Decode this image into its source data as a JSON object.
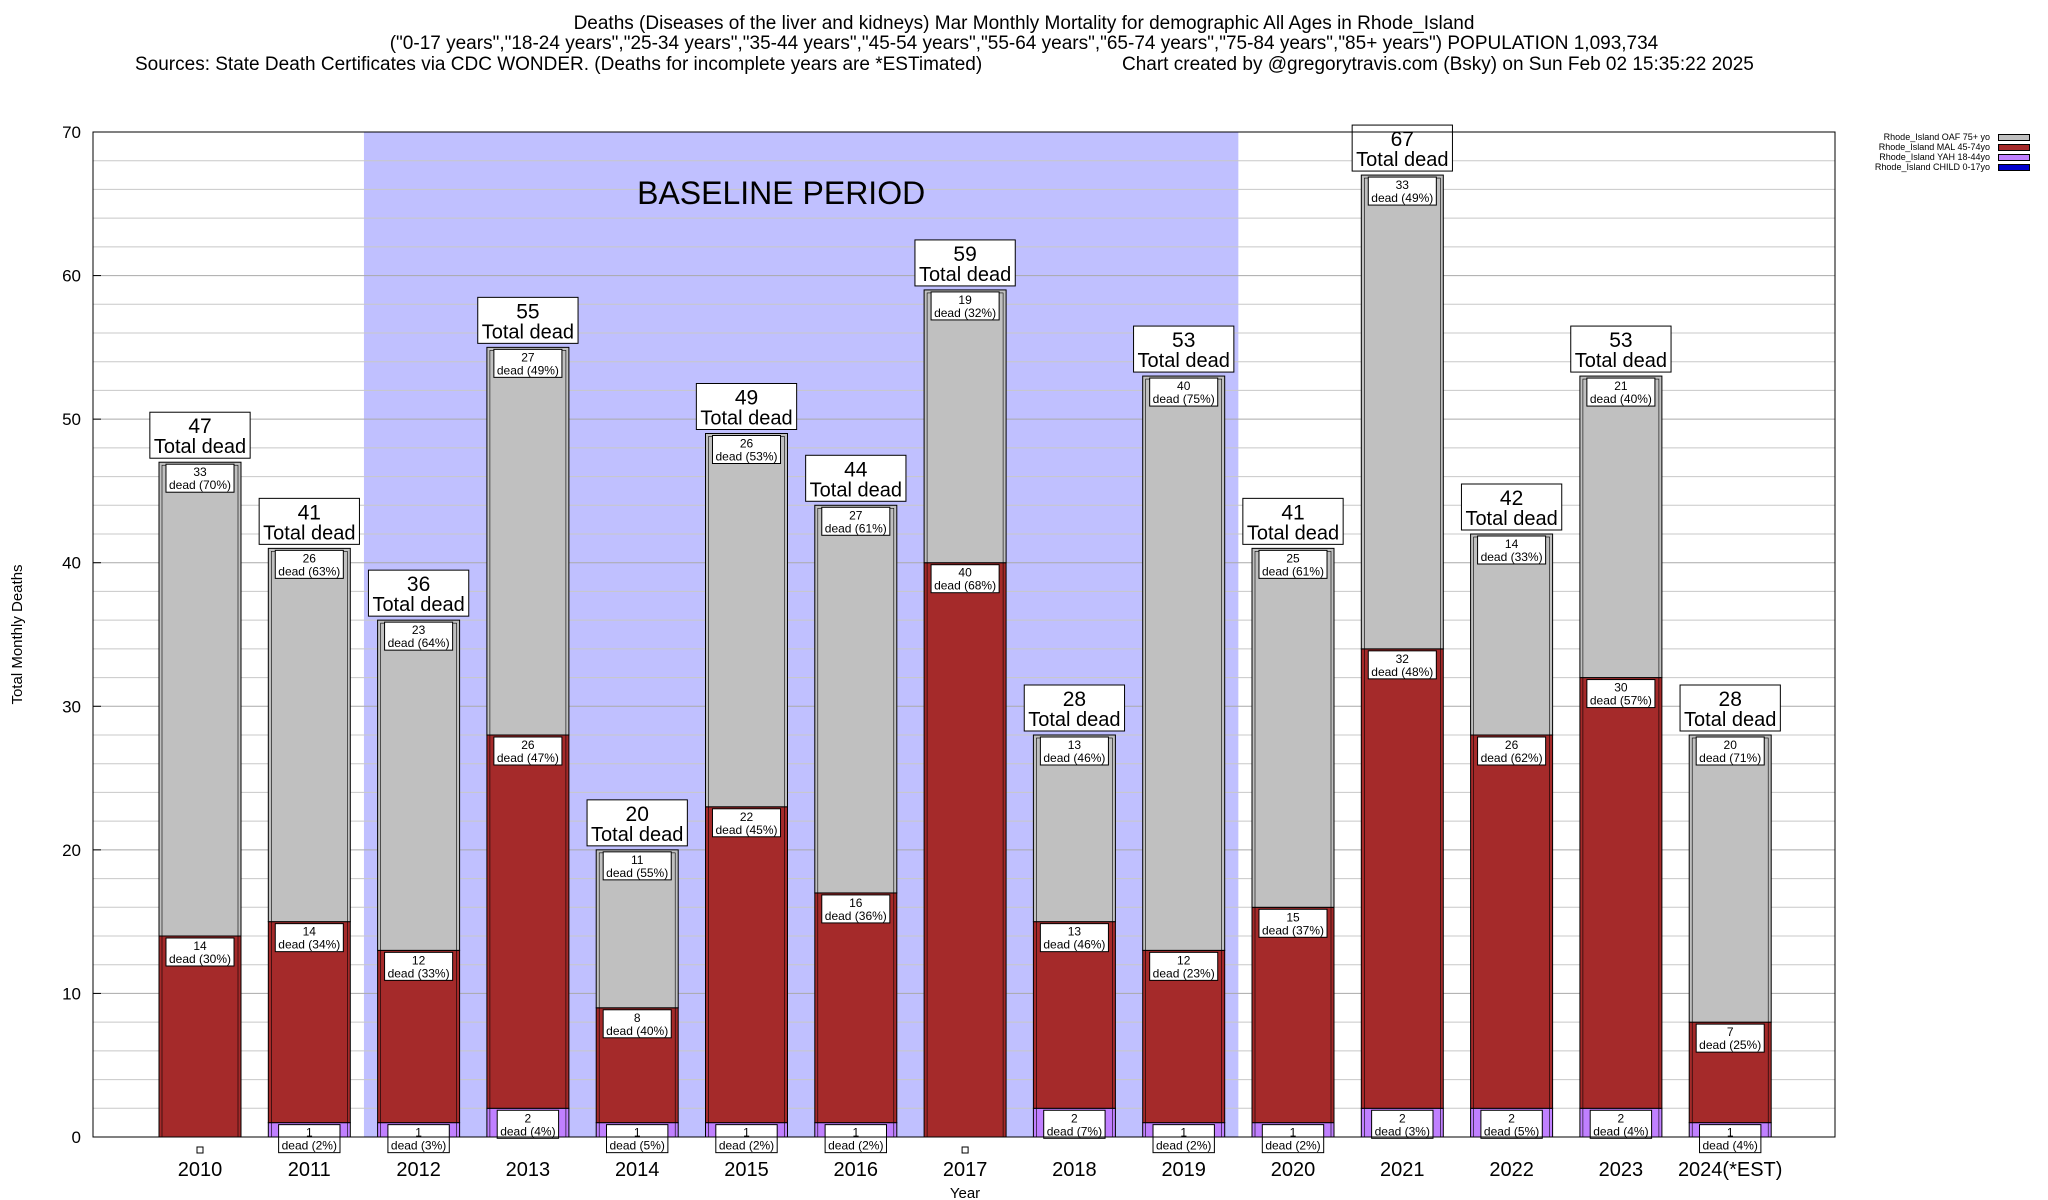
{
  "header": {
    "title_line1": "Deaths (Diseases of the liver and kidneys) Mar Monthly Mortality for demographic All Ages in Rhode_Island",
    "title_line2": "(\"0-17 years\",\"18-24 years\",\"25-34 years\",\"35-44 years\",\"45-54 years\",\"55-64 years\",\"65-74 years\",\"75-84 years\",\"85+ years\") POPULATION 1,093,734",
    "sources": "Sources: State Death Certificates via CDC WONDER. (Deaths for incomplete years are *ESTimated)",
    "credit": "Chart created by @gregorytravis.com (Bsky) on Sun Feb 02 15:35:22 2025"
  },
  "legend": [
    {
      "label": "Rhode_Island OAF 75+ yo",
      "color": "#c0c0c0"
    },
    {
      "label": "Rhode_Island MAL 45-74yo",
      "color": "#a52a2a"
    },
    {
      "label": "Rhode_Island YAH 18-44yo",
      "color": "#c080ff"
    },
    {
      "label": "Rhode_Island CHILD 0-17yo",
      "color": "#0000cd"
    }
  ],
  "chart_data": {
    "type": "bar",
    "stacked": true,
    "xlabel": "Year",
    "ylabel": "Total Monthly Deaths",
    "ylim": [
      0,
      70
    ],
    "yticks": [
      0,
      10,
      20,
      30,
      40,
      50,
      60,
      70
    ],
    "grid": true,
    "legend_position": "top-right",
    "baseline": {
      "label": "BASELINE PERIOD",
      "from": "2012",
      "to": "2019",
      "color": "#c0c0ff"
    },
    "categories": [
      "2010",
      "2011",
      "2012",
      "2013",
      "2014",
      "2015",
      "2016",
      "2017",
      "2018",
      "2019",
      "2020",
      "2021",
      "2022",
      "2023",
      "2024(*EST)"
    ],
    "totals": [
      47,
      41,
      36,
      55,
      20,
      49,
      44,
      59,
      28,
      53,
      41,
      67,
      42,
      53,
      28
    ],
    "total_label_suffix": "Total dead",
    "series": [
      {
        "name": "Rhode_Island CHILD 0-17yo",
        "color": "#0000cd",
        "values": [
          0,
          0,
          0,
          0,
          0,
          0,
          0,
          0,
          0,
          0,
          0,
          0,
          0,
          0,
          0
        ],
        "labels": [
          "",
          "",
          "",
          "",
          "",
          "",
          "",
          "",
          "",
          "",
          "",
          "",
          "",
          "",
          ""
        ]
      },
      {
        "name": "Rhode_Island YAH 18-44yo",
        "color": "#c080ff",
        "values": [
          0,
          1,
          1,
          2,
          1,
          1,
          1,
          0,
          2,
          1,
          1,
          2,
          2,
          2,
          1
        ],
        "labels": [
          "",
          "dead (2%)",
          "dead (3%)",
          "dead (4%)",
          "dead (5%)",
          "dead (2%)",
          "dead (2%)",
          "",
          "dead (7%)",
          "dead (2%)",
          "dead (2%)",
          "dead (3%)",
          "dead (5%)",
          "dead (4%)",
          "dead (4%)"
        ]
      },
      {
        "name": "Rhode_Island MAL 45-74yo",
        "color": "#a52a2a",
        "values": [
          14,
          14,
          12,
          26,
          8,
          22,
          16,
          40,
          13,
          12,
          15,
          32,
          26,
          30,
          7
        ],
        "labels": [
          "dead (30%)",
          "dead (34%)",
          "dead (33%)",
          "dead (47%)",
          "dead (40%)",
          "dead (45%)",
          "dead (36%)",
          "dead (68%)",
          "dead (46%)",
          "dead (23%)",
          "dead (37%)",
          "dead (48%)",
          "dead (62%)",
          "dead (57%)",
          "dead (25%)"
        ]
      },
      {
        "name": "Rhode_Island OAF 75+ yo",
        "color": "#c0c0c0",
        "values": [
          33,
          26,
          23,
          27,
          11,
          26,
          27,
          19,
          13,
          40,
          25,
          33,
          14,
          21,
          20
        ],
        "labels": [
          "dead (70%)",
          "dead (63%)",
          "dead (64%)",
          "dead (49%)",
          "dead (55%)",
          "dead (53%)",
          "dead (61%)",
          "dead (32%)",
          "dead (46%)",
          "dead (75%)",
          "dead (61%)",
          "dead (49%)",
          "dead (33%)",
          "dead (40%)",
          "dead (71%)"
        ]
      }
    ]
  }
}
